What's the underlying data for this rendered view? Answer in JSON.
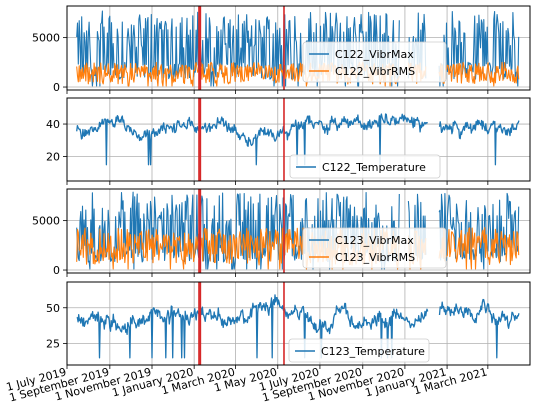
{
  "chart_data": [
    {
      "type": "line",
      "x_range": [
        "2019-07-01",
        "2021-05-01"
      ],
      "ylim": [
        -300,
        8200
      ],
      "y_ticks": [
        0,
        5000
      ],
      "grid": true,
      "legend_position": "center-right",
      "series": [
        {
          "name": "C122_VibrMax",
          "color": "#1f77b4",
          "typical_range": [
            800,
            7700
          ]
        },
        {
          "name": "C122_VibrRMS",
          "color": "#ff7f0e",
          "typical_range": [
            300,
            2500
          ]
        }
      ],
      "gaps": [
        [
          "2020-10-25",
          "2020-11-05"
        ],
        [
          "2020-12-02",
          "2020-12-20"
        ],
        [
          "2021-04-15",
          "2021-05-01"
        ]
      ]
    },
    {
      "type": "line",
      "x_range": [
        "2019-07-01",
        "2021-05-01"
      ],
      "ylim": [
        5,
        56
      ],
      "y_ticks": [
        20,
        40
      ],
      "grid": true,
      "legend_position": "bottom-center",
      "series": [
        {
          "name": "C122_Temperature",
          "color": "#1f77b4",
          "typical_range": [
            15,
            52
          ]
        }
      ],
      "gaps": [
        [
          "2020-12-05",
          "2020-12-20"
        ]
      ]
    },
    {
      "type": "line",
      "x_range": [
        "2019-07-01",
        "2021-05-01"
      ],
      "ylim": [
        -300,
        8200
      ],
      "y_ticks": [
        0,
        5000
      ],
      "grid": true,
      "legend_position": "center-right",
      "series": [
        {
          "name": "C123_VibrMax",
          "color": "#1f77b4",
          "typical_range": [
            800,
            7900
          ]
        },
        {
          "name": "C123_VibrRMS",
          "color": "#ff7f0e",
          "typical_range": [
            500,
            4300
          ]
        }
      ],
      "gaps": [
        [
          "2020-10-25",
          "2020-11-05"
        ],
        [
          "2020-12-02",
          "2020-12-20"
        ],
        [
          "2021-04-15",
          "2021-05-01"
        ]
      ]
    },
    {
      "type": "line",
      "x_range": [
        "2019-07-01",
        "2021-05-01"
      ],
      "ylim": [
        10,
        68
      ],
      "y_ticks": [
        25,
        50
      ],
      "grid": true,
      "legend_position": "bottom-right",
      "series": [
        {
          "name": "C123_Temperature",
          "color": "#1f77b4",
          "typical_range": [
            15,
            65
          ]
        }
      ],
      "gaps": [
        [
          "2020-12-05",
          "2020-12-20"
        ]
      ]
    }
  ],
  "x_ticks": [
    {
      "date": "2019-07-01",
      "label": "1 July 2019"
    },
    {
      "date": "2019-09-01",
      "label": "1 September 2019"
    },
    {
      "date": "2019-11-01",
      "label": "1 November 2019"
    },
    {
      "date": "2020-01-01",
      "label": "1 January 2020"
    },
    {
      "date": "2020-03-01",
      "label": "1 March 2020"
    },
    {
      "date": "2020-05-01",
      "label": "1 May 2020"
    },
    {
      "date": "2020-07-01",
      "label": "1 July 2020"
    },
    {
      "date": "2020-09-01",
      "label": "1 September 2020"
    },
    {
      "date": "2020-11-01",
      "label": "1 November 2020"
    },
    {
      "date": "2021-01-01",
      "label": "1 January 2021"
    },
    {
      "date": "2021-03-01",
      "label": "1 March 2021"
    }
  ],
  "event_markers": {
    "color": "#d62728",
    "dates": [
      "2020-01-08",
      "2020-01-10",
      "2020-05-10"
    ]
  },
  "colors": {
    "line_blue": "#1f77b4",
    "line_orange": "#ff7f0e",
    "marker_red": "#d62728",
    "grid": "#b0b0b0"
  }
}
